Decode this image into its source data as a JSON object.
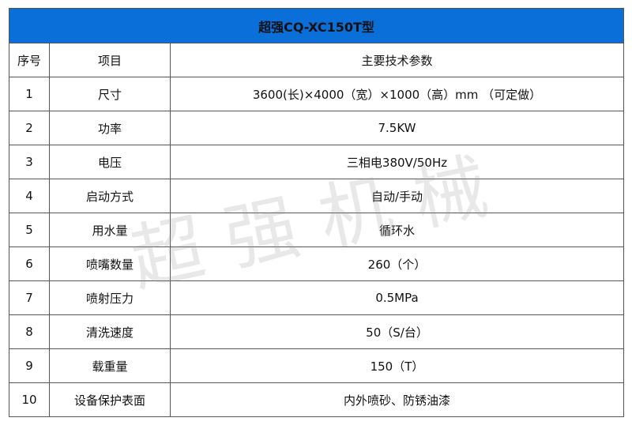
{
  "title": "超强CQ-XC150T型",
  "columns": [
    "序号",
    "项目",
    "主要技术参数"
  ],
  "rows": [
    {
      "no": "1",
      "item": "尺寸",
      "value": "3600(长)×4000（宽）×1000（高）mm （可定做）"
    },
    {
      "no": "2",
      "item": "功率",
      "value": "7.5KW"
    },
    {
      "no": "3",
      "item": "电压",
      "value": "三相电380V/50Hz"
    },
    {
      "no": "4",
      "item": "启动方式",
      "value": "自动/手动"
    },
    {
      "no": "5",
      "item": "用水量",
      "value": "循环水"
    },
    {
      "no": "6",
      "item": "喷嘴数量",
      "value": "260（个）"
    },
    {
      "no": "7",
      "item": "喷射压力",
      "value": "0.5MPa"
    },
    {
      "no": "8",
      "item": "清洗速度",
      "value": "50（S/台）"
    },
    {
      "no": "9",
      "item": "载重量",
      "value": "150（T）"
    },
    {
      "no": "10",
      "item": "设备保护表面",
      "value": "内外喷砂、防锈油漆"
    }
  ],
  "watermark": "超强机械",
  "colors": {
    "header_bg": "#0a6fd8",
    "border": "#555555"
  }
}
